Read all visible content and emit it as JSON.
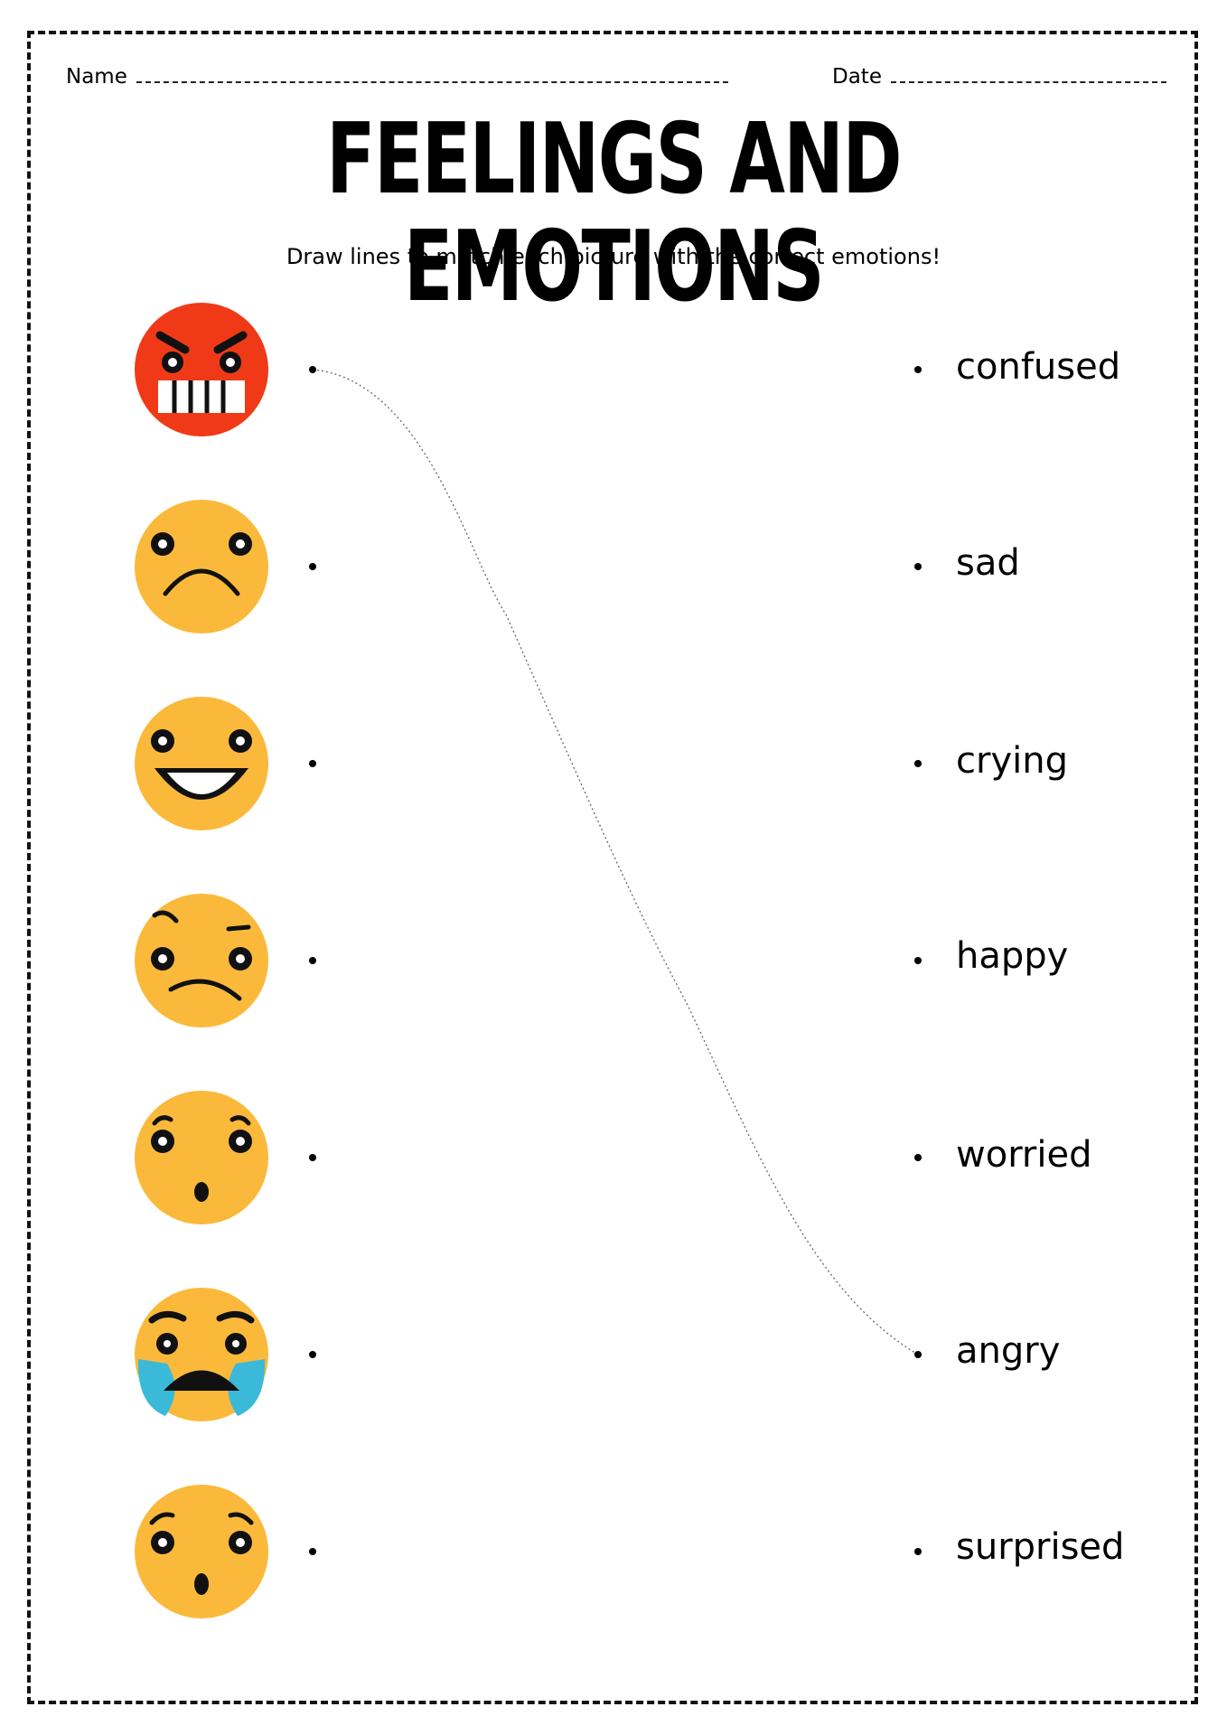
{
  "header": {
    "name_label": "Name",
    "date_label": "Date"
  },
  "title": "FEELINGS AND EMOTIONS",
  "instructions": "Draw lines to match each picture with the correct emotions!",
  "pictures": [
    {
      "icon": "angry-face-icon",
      "color": "#F03A17"
    },
    {
      "icon": "sad-face-icon",
      "color": "#FBB93B"
    },
    {
      "icon": "happy-face-icon",
      "color": "#FBB93B"
    },
    {
      "icon": "confused-face-icon",
      "color": "#FBB93B"
    },
    {
      "icon": "surprised-face-icon",
      "color": "#FBB93B"
    },
    {
      "icon": "crying-face-icon",
      "color": "#FBB93B"
    },
    {
      "icon": "worried-face-icon",
      "color": "#FBB93B"
    }
  ],
  "emotions": [
    "confused",
    "sad",
    "crying",
    "happy",
    "worried",
    "angry",
    "surprised"
  ],
  "example_match": {
    "picture": "angry-face-icon",
    "emotion": "angry"
  }
}
